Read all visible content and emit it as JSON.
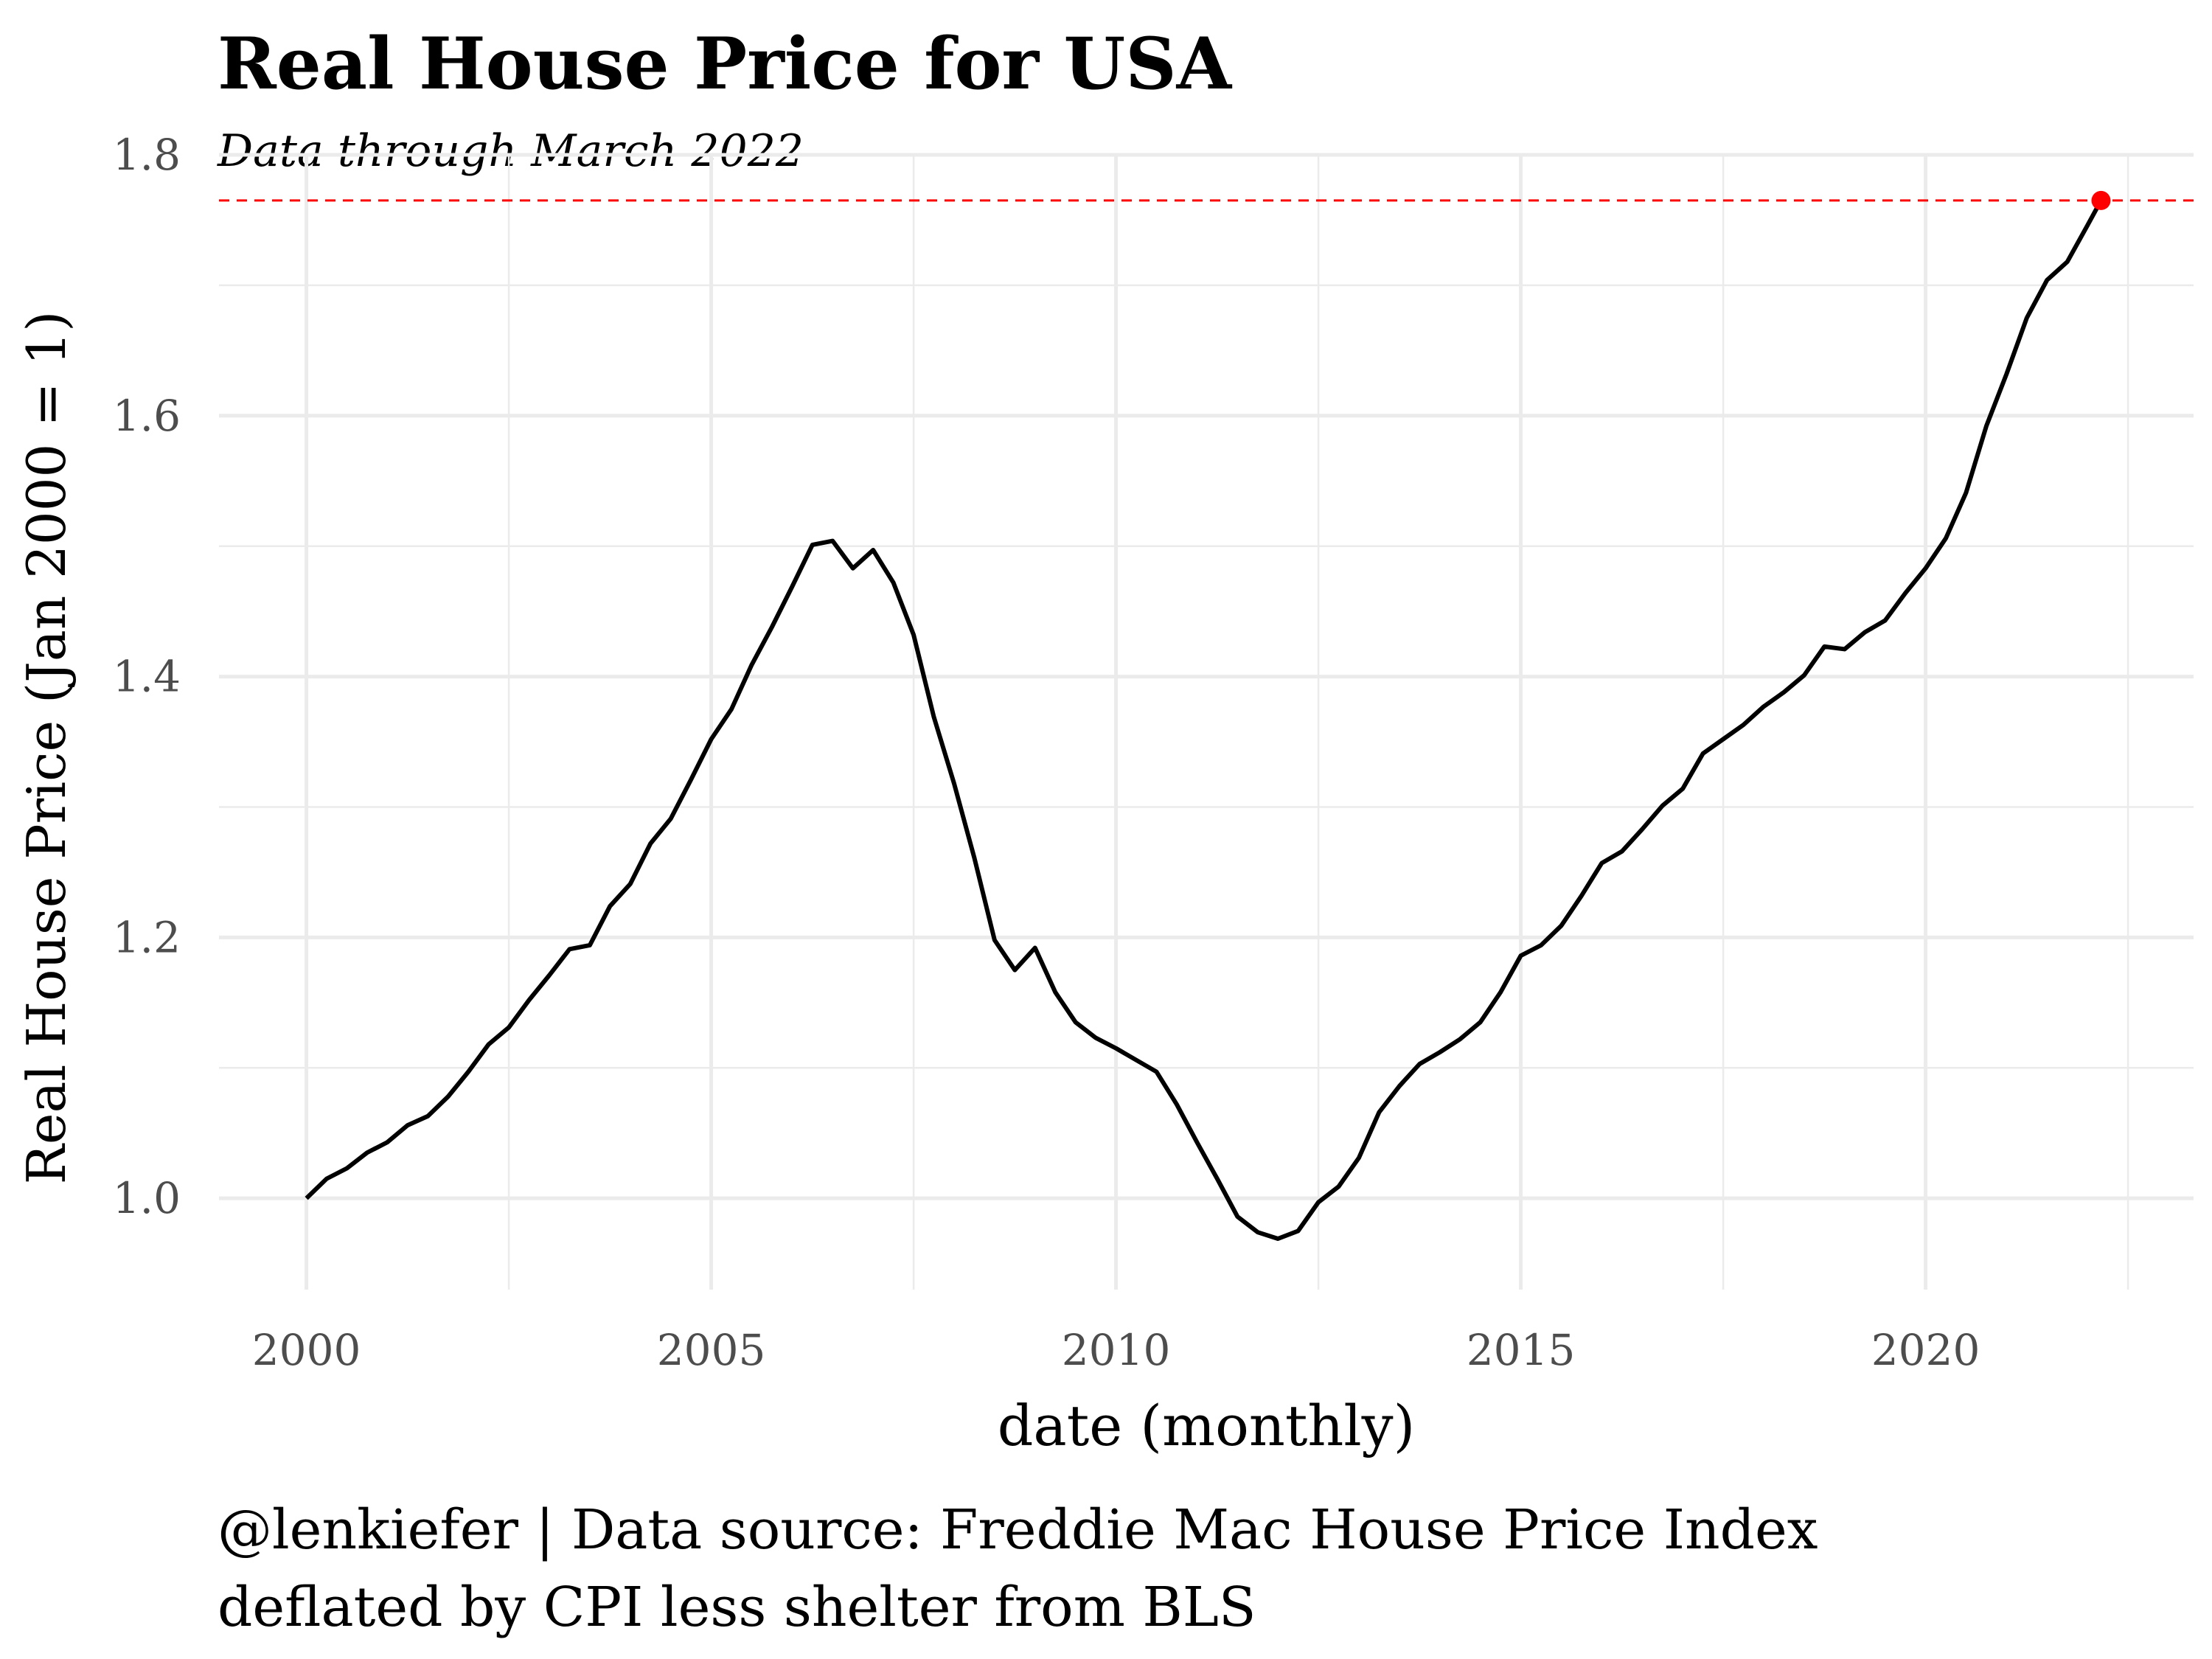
{
  "chart_data": {
    "type": "line",
    "title": "Real House Price for USA",
    "subtitle": "Data through March 2022",
    "xlabel": "date (monthly)",
    "ylabel": "Real House Price (Jan 2000 = 1)",
    "caption": [
      "@lenkiefer | Data source: Freddie Mac House Price Index",
      "deflated by CPI less shelter from BLS"
    ],
    "x": [
      2000,
      2000.25,
      2000.5,
      2000.75,
      2001,
      2001.25,
      2001.5,
      2001.75,
      2002,
      2002.25,
      2002.5,
      2002.75,
      2003,
      2003.25,
      2003.5,
      2003.75,
      2004,
      2004.25,
      2004.5,
      2004.75,
      2005,
      2005.25,
      2005.5,
      2005.75,
      2006,
      2006.25,
      2006.5,
      2006.75,
      2007,
      2007.25,
      2007.5,
      2007.75,
      2008,
      2008.25,
      2008.5,
      2008.75,
      2009,
      2009.25,
      2009.5,
      2009.75,
      2010,
      2010.25,
      2010.5,
      2010.75,
      2011,
      2011.25,
      2011.5,
      2011.75,
      2012,
      2012.25,
      2012.5,
      2012.75,
      2013,
      2013.25,
      2013.5,
      2013.75,
      2014,
      2014.25,
      2014.5,
      2014.75,
      2015,
      2015.25,
      2015.5,
      2015.75,
      2016,
      2016.25,
      2016.5,
      2016.75,
      2017,
      2017.25,
      2017.5,
      2017.75,
      2018,
      2018.25,
      2018.5,
      2018.75,
      2019,
      2019.25,
      2019.5,
      2019.75,
      2020,
      2020.25,
      2020.5,
      2020.75,
      2021,
      2021.25,
      2021.5,
      2021.75,
      2022,
      2022.167
    ],
    "series": [
      {
        "name": "Real House Price",
        "color": "#000000",
        "values": [
          1.0,
          1.015,
          1.023,
          1.035,
          1.043,
          1.056,
          1.063,
          1.078,
          1.097,
          1.118,
          1.131,
          1.152,
          1.171,
          1.191,
          1.194,
          1.224,
          1.241,
          1.272,
          1.291,
          1.321,
          1.352,
          1.375,
          1.409,
          1.438,
          1.469,
          1.501,
          1.504,
          1.483,
          1.497,
          1.472,
          1.432,
          1.369,
          1.318,
          1.261,
          1.198,
          1.175,
          1.192,
          1.158,
          1.135,
          1.123,
          1.115,
          1.106,
          1.097,
          1.072,
          1.043,
          1.015,
          0.986,
          0.974,
          0.969,
          0.975,
          0.997,
          1.009,
          1.031,
          1.066,
          1.086,
          1.103,
          1.112,
          1.122,
          1.135,
          1.158,
          1.186,
          1.194,
          1.209,
          1.232,
          1.257,
          1.266,
          1.283,
          1.301,
          1.314,
          1.341,
          1.352,
          1.363,
          1.377,
          1.388,
          1.401,
          1.423,
          1.421,
          1.434,
          1.443,
          1.464,
          1.483,
          1.506,
          1.541,
          1.592,
          1.632,
          1.675,
          1.704,
          1.718,
          1.746,
          1.765
        ]
      }
    ],
    "highlight_last": true,
    "highlight_color": "#ff0000",
    "xlim": [
      1998.92,
      2023.31
    ],
    "ylim": [
      0.93,
      1.8
    ],
    "xticks": [
      2000,
      2005,
      2010,
      2015,
      2020
    ],
    "yticks": [
      {
        "value": 1,
        "label": "1.0"
      },
      1.2,
      1.4,
      1.6,
      1.8
    ],
    "x_minor_ticks": [
      2002.5,
      2007.5,
      2012.5,
      2017.5,
      2022.5
    ],
    "y_minor_ticks": [
      1.1,
      1.3,
      1.5,
      1.7
    ],
    "grid": true
  }
}
